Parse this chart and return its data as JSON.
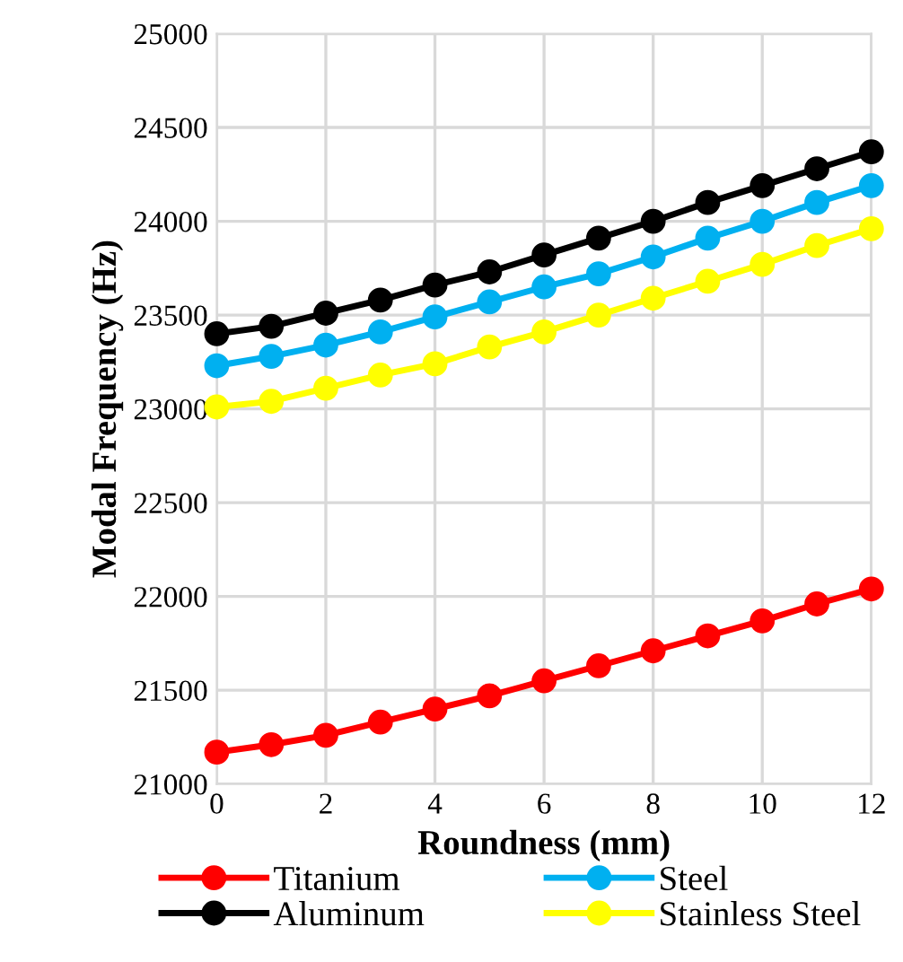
{
  "chart_data": {
    "type": "line",
    "xlabel": "Roundness (mm)",
    "ylabel": "Modal Frequency (Hz)",
    "x": [
      0,
      1,
      2,
      3,
      4,
      5,
      6,
      7,
      8,
      9,
      10,
      11,
      12
    ],
    "xlim": [
      0,
      12
    ],
    "xticks": [
      0,
      2,
      4,
      6,
      8,
      10,
      12
    ],
    "ylim": [
      21000,
      25000
    ],
    "yticks": [
      21000,
      21500,
      22000,
      22500,
      23000,
      23500,
      24000,
      24500,
      25000
    ],
    "grid": true,
    "legend": "bottom",
    "marker": "circle",
    "line_style": "solid",
    "series": [
      {
        "name": "Titanium",
        "color": "#ff0000",
        "values": [
          21170,
          21210,
          21260,
          21330,
          21400,
          21470,
          21550,
          21630,
          21710,
          21790,
          21870,
          21960,
          22040
        ]
      },
      {
        "name": "Aluminum",
        "color": "#000000",
        "values": [
          23400,
          23440,
          23510,
          23580,
          23660,
          23730,
          23820,
          23910,
          24000,
          24100,
          24190,
          24280,
          24370
        ]
      },
      {
        "name": "Steel",
        "color": "#00b0f0",
        "values": [
          23230,
          23280,
          23340,
          23410,
          23490,
          23570,
          23650,
          23720,
          23810,
          23910,
          24000,
          24100,
          24190
        ]
      },
      {
        "name": "Stainless Steel",
        "color": "#ffff00",
        "values": [
          23010,
          23040,
          23110,
          23180,
          23240,
          23330,
          23410,
          23500,
          23590,
          23680,
          23770,
          23870,
          23960
        ]
      }
    ]
  }
}
